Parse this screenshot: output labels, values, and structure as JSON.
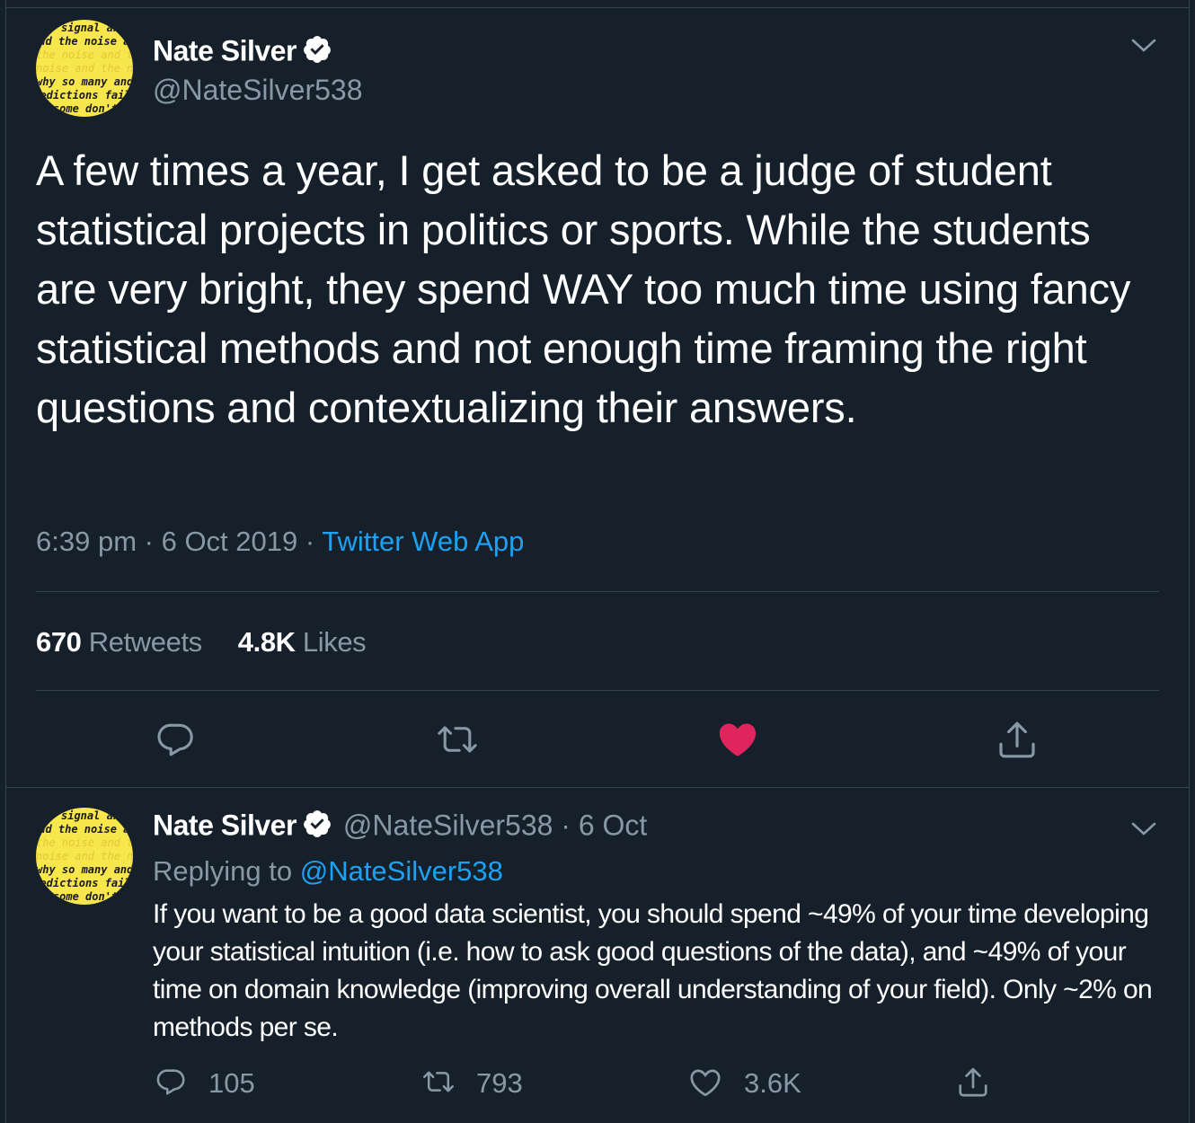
{
  "tweet": {
    "author_name": "Nate Silver",
    "handle": "@NateSilver538",
    "text": "A few times a year, I get asked to be a judge of student statistical projects in politics or sports. While the students are very bright, they spend WAY too much time using fancy statistical methods and not enough time framing the right questions and contextualizing their answers.",
    "time": "6:39 pm",
    "date": "6 Oct 2019",
    "source": "Twitter Web App",
    "retweets_count": "670",
    "retweets_label": "Retweets",
    "likes_count": "4.8K",
    "likes_label": "Likes",
    "liked": true,
    "avatar_text": [
      "signal and",
      "and the noise and",
      "the noise and the",
      "noise and the noise",
      "why so many and",
      "predictions fail",
      "but some don't"
    ]
  },
  "reply": {
    "author_name": "Nate Silver",
    "handle": "@NateSilver538",
    "date": "6 Oct",
    "replying_prefix": "Replying to",
    "replying_to": "@NateSilver538",
    "text": "If you want to be a good data scientist, you should spend ~49% of your time developing your statistical intuition (i.e. how to ask good questions of the data), and ~49% of your time on domain knowledge (improving overall understanding of your field). Only ~2% on methods per se.",
    "reply_count": "105",
    "retweet_count": "793",
    "like_count": "3.6K"
  },
  "colors": {
    "background": "#15202b",
    "border": "#38444d",
    "secondary_text": "#8899a6",
    "link": "#1da1f2",
    "like_active": "#e0245e",
    "avatar_yellow": "#f7e64c"
  }
}
